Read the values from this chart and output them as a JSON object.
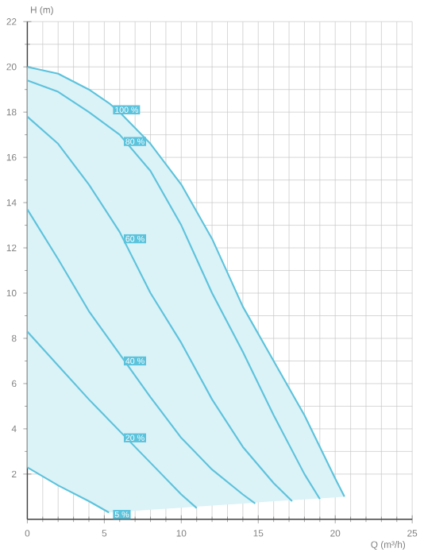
{
  "chart_data": {
    "type": "line",
    "xlabel": "Q (m³/h)",
    "ylabel": "H (m)",
    "xlim": [
      0,
      25
    ],
    "ylim": [
      0,
      22
    ],
    "xticks": [
      0,
      5,
      10,
      15,
      20,
      25
    ],
    "yticks": [
      2,
      4,
      6,
      8,
      10,
      12,
      14,
      16,
      18,
      20,
      22
    ],
    "grid": true,
    "marker": "none",
    "series": [
      {
        "name": "100 %",
        "color": "#5bc3dc",
        "x": [
          0,
          2,
          4,
          5.3,
          6,
          8,
          10,
          12,
          14,
          16,
          18,
          20,
          20.6
        ],
        "values": [
          20,
          19.7,
          19,
          18.4,
          18,
          16.6,
          14.8,
          12.4,
          9.4,
          7.0,
          4.6,
          1.8,
          1.0
        ],
        "upper": [
          20,
          19.7,
          19,
          18.4,
          18,
          16.6,
          14.8,
          12.4,
          9.4,
          7.0,
          4.6,
          1.8,
          1.0
        ],
        "lower": [
          2.3,
          1.5,
          0.8,
          0.3,
          0.33,
          0.42,
          0.51,
          0.61,
          0.7,
          0.8,
          0.88,
          0.97,
          1.0
        ]
      },
      {
        "name": "80 %",
        "color": "#5bc3dc",
        "x": [
          0,
          2,
          4,
          6,
          8,
          10,
          12,
          14,
          16,
          18,
          19
        ],
        "values": [
          19.4,
          18.9,
          18,
          17,
          15.4,
          13,
          10,
          7.4,
          4.6,
          2.0,
          0.9
        ]
      },
      {
        "name": "60 %",
        "color": "#5bc3dc",
        "x": [
          0,
          2,
          4,
          6,
          8,
          10,
          12,
          14,
          16,
          17.2
        ],
        "values": [
          17.8,
          16.6,
          14.8,
          12.7,
          10,
          7.8,
          5.3,
          3.2,
          1.6,
          0.8
        ]
      },
      {
        "name": "40 %",
        "color": "#5bc3dc",
        "x": [
          0,
          2,
          4,
          6,
          8,
          10,
          12,
          14,
          14.8
        ],
        "values": [
          13.7,
          11.5,
          9.2,
          7.3,
          5.4,
          3.6,
          2.2,
          1.1,
          0.7
        ]
      },
      {
        "name": "20 %",
        "color": "#5bc3dc",
        "x": [
          0,
          2,
          4,
          6,
          8,
          10,
          11
        ],
        "values": [
          8.3,
          6.8,
          5.3,
          3.9,
          2.5,
          1.1,
          0.5
        ]
      },
      {
        "name": "5 %",
        "color": "#5bc3dc",
        "x": [
          0,
          2,
          4,
          5.3
        ],
        "values": [
          2.3,
          1.5,
          0.8,
          0.3
        ]
      }
    ]
  }
}
